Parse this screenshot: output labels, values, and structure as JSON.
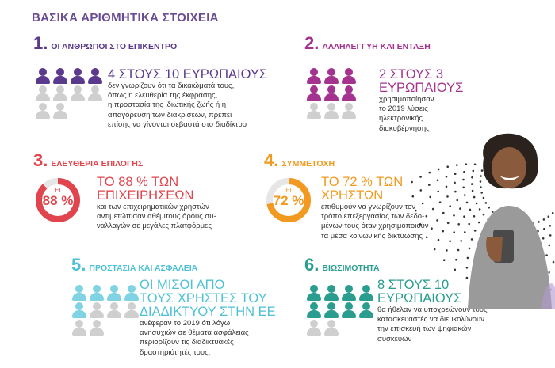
{
  "page_title": "ΒΑΣΙΚΑ ΑΡΙΘΜΗΤΙΚΑ ΣΤΟΙΧΕΙΑ",
  "colors": {
    "purple": "#5b3a8e",
    "magenta": "#a3338f",
    "red": "#e0454d",
    "orange": "#f29a1f",
    "cyan": "#7fd3e3",
    "teal": "#2a9d8f",
    "grey": "#cfcfcf",
    "title": "#6a4c93"
  },
  "sections": [
    {
      "number": "1.",
      "label": "ΟΙ ΑΝΘΡΩΠΟΙ ΣΤΟ ΕΠΙΚΕΝΤΡΟ",
      "big": [
        "4 ΣΤΟΥΣ 10 ΕΥΡΩΠΑΙΟΥΣ"
      ],
      "body": [
        "δεν γνωρίζουν ότι τα δικαιώματά τους,",
        "όπως η ελευθερία της έκφρασης,",
        "η προστασία της ιδιωτικής ζωής ή η",
        "απαγόρευση των διακρίσεων, πρέπει",
        "επίσης να γίνονται σεβαστά στο διαδίκτυο"
      ],
      "filled": 4,
      "total": 10
    },
    {
      "number": "2.",
      "label": "ΑΛΛΗΛΕΓΓΥΗ ΚΑΙ ΕΝΤΑΞΗ",
      "big": [
        "2 ΣΤΟΥΣ 3",
        "ΕΥΡΩΠΑΙΟΥΣ"
      ],
      "body": [
        "χρησιμοποίησαν",
        "το 2019 λύσεις",
        "ηλεκτρονικής",
        "διακυβέρνησης"
      ],
      "filled": 6,
      "total": 9
    },
    {
      "number": "3.",
      "label": "ΕΛΕΥΘΕΡΙΑ ΕΠΙΛΟΓΗΣ",
      "big": [
        "ΤΟ 88 % ΤΩΝ",
        "ΕΠΙΧΕΙΡΗΣΕΩΝ"
      ],
      "body": [
        "και των επιχειρηματικών χρηστών",
        "αντιμετώπισαν αθέμιτους όρους συ-",
        "ναλλαγών σε μεγάλες πλατφόρμες"
      ],
      "donut_small": "ΕΙ",
      "donut_value": "88 %",
      "percent": 88
    },
    {
      "number": "4.",
      "label": "ΣΥΜΜΕΤΟΧΗ",
      "big": [
        "ΤΟ 72 % ΤΩΝ",
        "ΧΡΗΣΤΩΝ"
      ],
      "body": [
        "επιθυμούν να γνωρίζουν τον",
        "τρόπο επεξεργασίας των δεδο-",
        "μένων τους όταν χρησιμοποιούν",
        "τα μέσα κοινωνικής δικτύωσης"
      ],
      "donut_small": "ΕΙ",
      "donut_value": "72 %",
      "percent": 72
    },
    {
      "number": "5.",
      "label": "ΠΡΟΣΤΑΣΙΑ ΚΑΙ ΑΣΦΑΛΕΙΑ",
      "big": [
        "ΟΙ ΜΙΣΟΙ ΑΠΟ",
        "ΤΟΥΣ ΧΡΗΣΤΕΣ ΤΟΥ",
        "ΔΙΑΔΙΚΤΥΟΥ ΣΤΗΝ ΕΕ"
      ],
      "body": [
        "ανέφεραν το 2019 ότι λόγω",
        "ανησυχιών σε θέματα ασφάλειας",
        "περιορίζουν τις διαδικτυακές",
        "δραστηριότητές τους."
      ],
      "filled": 5,
      "total": 10
    },
    {
      "number": "6.",
      "label": "ΒΙΩΣΙΜΟΤΗΤΑ",
      "big": [
        "8 ΣΤΟΥΣ 10",
        "ΕΥΡΩΠΑΙΟΥΣ"
      ],
      "body": [
        "θα ήθελαν να υποχρεώνουν τους",
        "κατασκευαστές να διευκολύνουν",
        "την επισκευή των ψηφιακών",
        "συσκευών"
      ],
      "filled": 8,
      "total": 10
    }
  ]
}
